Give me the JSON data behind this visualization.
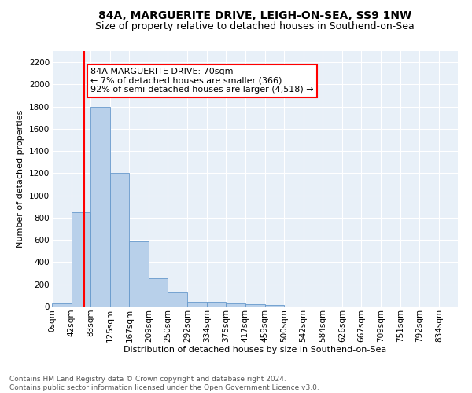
{
  "title": "84A, MARGUERITE DRIVE, LEIGH-ON-SEA, SS9 1NW",
  "subtitle": "Size of property relative to detached houses in Southend-on-Sea",
  "xlabel": "Distribution of detached houses by size in Southend-on-Sea",
  "ylabel": "Number of detached properties",
  "bar_labels": [
    "0sqm",
    "42sqm",
    "83sqm",
    "125sqm",
    "167sqm",
    "209sqm",
    "250sqm",
    "292sqm",
    "334sqm",
    "375sqm",
    "417sqm",
    "459sqm",
    "500sqm",
    "542sqm",
    "584sqm",
    "626sqm",
    "667sqm",
    "709sqm",
    "751sqm",
    "792sqm",
    "834sqm"
  ],
  "bar_values": [
    25,
    850,
    1800,
    1200,
    585,
    255,
    130,
    45,
    40,
    28,
    20,
    14,
    0,
    0,
    0,
    0,
    0,
    0,
    0,
    0,
    0
  ],
  "bar_color": "#b8d0ea",
  "bar_edge_color": "#6699cc",
  "annotation_text": "84A MARGUERITE DRIVE: 70sqm\n← 7% of detached houses are smaller (366)\n92% of semi-detached houses are larger (4,518) →",
  "annotation_box_color": "white",
  "annotation_box_edge_color": "red",
  "marker_color": "red",
  "ylim": [
    0,
    2300
  ],
  "yticks": [
    0,
    200,
    400,
    600,
    800,
    1000,
    1200,
    1400,
    1600,
    1800,
    2000,
    2200
  ],
  "bin_edges": [
    0,
    42,
    83,
    125,
    167,
    209,
    250,
    292,
    334,
    375,
    417,
    459,
    500,
    542,
    584,
    626,
    667,
    709,
    751,
    792,
    834,
    875
  ],
  "background_color": "#e8f0f8",
  "footer_text": "Contains HM Land Registry data © Crown copyright and database right 2024.\nContains public sector information licensed under the Open Government Licence v3.0.",
  "title_fontsize": 10,
  "subtitle_fontsize": 9,
  "annotation_fontsize": 8,
  "axis_label_fontsize": 8,
  "tick_fontsize": 7.5,
  "footer_fontsize": 6.5
}
